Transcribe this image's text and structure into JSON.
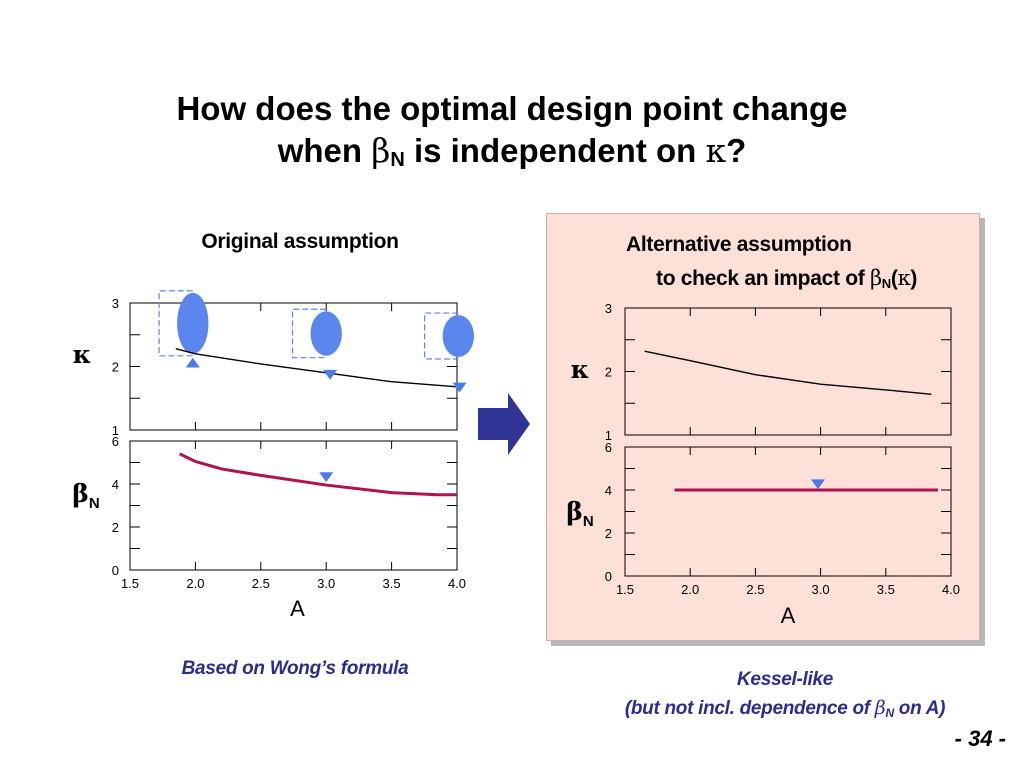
{
  "title": {
    "line1": "How does the optimal design point change",
    "line2_pre": "when ",
    "line2_beta": "β",
    "line2_sub": "N",
    "line2_mid": " is independent on ",
    "line2_kappa": "κ",
    "line2_end": "?"
  },
  "left_caption": "Original assumption",
  "right_caption": {
    "line1": "Alternative assumption",
    "line2_pre": "to check an impact of ",
    "beta": "β",
    "sub": "N",
    "open": "(",
    "kappa": "κ",
    "close": ")"
  },
  "left_note": "Based on Wong’s formula",
  "right_note": {
    "line1": "Kessel-like",
    "line2_pre": "(but not incl. dependence of ",
    "beta": "β",
    "sub": "N",
    "line2_post": " on A)"
  },
  "page_number": "- 34 -",
  "colors": {
    "curve": "#000000",
    "beta_curve": "#b0124e",
    "marker": "#4a7be8",
    "ellipse": "#5b86ee",
    "arrow": "#2f3496",
    "panel_bg": "#fde0d8",
    "note_text": "#2b2d8c"
  },
  "icons": {
    "arrow": "right-arrow-icon",
    "marker_down": "triangle-down-icon",
    "marker_up": "triangle-up-icon"
  },
  "chart_data": [
    {
      "id": "left-kappa",
      "type": "line",
      "ylabel_symbol": "κ",
      "xlim": [
        1.5,
        4.0
      ],
      "ylim": [
        1,
        3
      ],
      "yticks": [
        "1",
        "2",
        "3"
      ],
      "series": [
        {
          "x": [
            1.85,
            2.0,
            2.5,
            3.0,
            3.5,
            4.0
          ],
          "y": [
            2.28,
            2.2,
            2.04,
            1.9,
            1.76,
            1.68
          ]
        }
      ],
      "markers": [
        {
          "x": 1.98,
          "y": 2.05,
          "shape": "triangle-up"
        },
        {
          "x": 3.03,
          "y": 1.88,
          "shape": "triangle-down"
        },
        {
          "x": 4.02,
          "y": 1.68,
          "shape": "triangle-down"
        }
      ],
      "ellipses": [
        {
          "x": 1.98,
          "y": 2.68,
          "rx": 0.12,
          "ry": 0.48
        },
        {
          "x": 3.0,
          "y": 2.52,
          "rx": 0.12,
          "ry": 0.35
        },
        {
          "x": 4.01,
          "y": 2.48,
          "rx": 0.12,
          "ry": 0.33
        }
      ]
    },
    {
      "id": "left-beta",
      "type": "line",
      "ylabel_symbol": "β",
      "ylabel_sub": "N",
      "xlabel": "A",
      "xlim": [
        1.5,
        4.0
      ],
      "ylim": [
        0,
        6
      ],
      "xticks": [
        "1.5",
        "2.0",
        "2.5",
        "3.0",
        "3.5",
        "4.0"
      ],
      "yticks": [
        "0",
        "2",
        "4",
        "6"
      ],
      "series": [
        {
          "x": [
            1.88,
            2.0,
            2.2,
            2.5,
            3.0,
            3.5,
            3.85,
            4.0
          ],
          "y": [
            5.4,
            5.05,
            4.7,
            4.4,
            3.95,
            3.6,
            3.5,
            3.5
          ]
        }
      ],
      "markers": [
        {
          "x": 3.0,
          "y": 4.35,
          "shape": "triangle-down"
        }
      ]
    },
    {
      "id": "right-kappa",
      "type": "line",
      "ylabel_symbol": "κ",
      "xlim": [
        1.5,
        4.0
      ],
      "ylim": [
        1,
        3
      ],
      "yticks": [
        "1",
        "2",
        "3"
      ],
      "series": [
        {
          "x": [
            1.65,
            2.0,
            2.5,
            3.0,
            3.5,
            3.85
          ],
          "y": [
            2.32,
            2.17,
            1.95,
            1.8,
            1.71,
            1.64
          ]
        }
      ]
    },
    {
      "id": "right-beta",
      "type": "line",
      "ylabel_symbol": "β",
      "ylabel_sub": "N",
      "xlabel": "A",
      "xlim": [
        1.5,
        4.0
      ],
      "ylim": [
        0,
        6
      ],
      "xticks": [
        "1.5",
        "2.0",
        "2.5",
        "3.0",
        "3.5",
        "4.0"
      ],
      "yticks": [
        "0",
        "2",
        "4",
        "6"
      ],
      "series": [
        {
          "x": [
            1.88,
            3.9
          ],
          "y": [
            4.0,
            4.0
          ]
        }
      ],
      "markers": [
        {
          "x": 2.98,
          "y": 4.3,
          "shape": "triangle-down"
        }
      ]
    }
  ]
}
